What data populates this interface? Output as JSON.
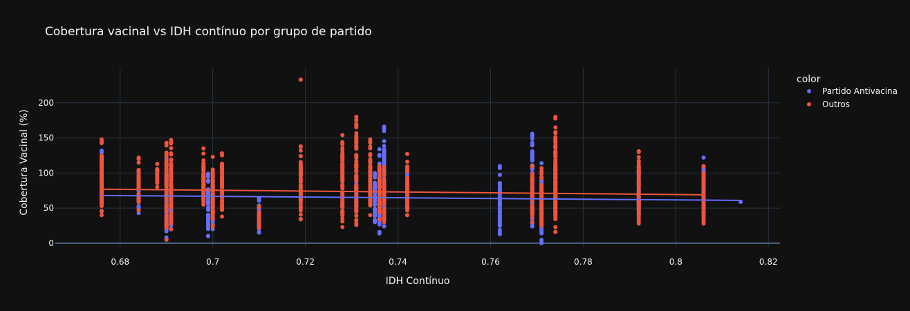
{
  "chart_data": {
    "type": "scatter",
    "title": "Cobertura vacinal vs IDH contínuo por grupo de partido",
    "xlabel": "IDH Contínuo",
    "ylabel": "Cobertura Vacinal (%)",
    "xlim": [
      0.666,
      0.8225
    ],
    "ylim": [
      -5,
      250
    ],
    "xticks": [
      0.68,
      0.7,
      0.72,
      0.74,
      0.76,
      0.78,
      0.8,
      0.82
    ],
    "xtick_labels": [
      "0.68",
      "0.7",
      "0.72",
      "0.74",
      "0.76",
      "0.78",
      "0.8",
      "0.82"
    ],
    "yticks": [
      0,
      50,
      100,
      150,
      200
    ],
    "ytick_labels": [
      "0",
      "50",
      "100",
      "150",
      "200"
    ],
    "grid": true,
    "legend": {
      "title": "color",
      "position": "right"
    },
    "background": "#111111",
    "grid_color": "#283442",
    "series": [
      {
        "name": "Partido Antivacina",
        "color": "#636efa",
        "columns": [
          {
            "x": 0.676,
            "min": 45,
            "max": 132
          },
          {
            "x": 0.684,
            "min": 43,
            "max": 95
          },
          {
            "x": 0.69,
            "min": 5,
            "max": 120
          },
          {
            "x": 0.691,
            "min": 20,
            "max": 100
          },
          {
            "x": 0.698,
            "min": 55,
            "max": 110
          },
          {
            "x": 0.699,
            "min": 10,
            "max": 99
          },
          {
            "x": 0.7,
            "min": 20,
            "max": 100
          },
          {
            "x": 0.71,
            "min": 15,
            "max": 64
          },
          {
            "x": 0.731,
            "min": 45,
            "max": 95
          },
          {
            "x": 0.735,
            "min": 30,
            "max": 100
          },
          {
            "x": 0.736,
            "min": 14,
            "max": 134
          },
          {
            "x": 0.737,
            "min": 24,
            "max": 166
          },
          {
            "x": 0.742,
            "min": 40,
            "max": 100
          },
          {
            "x": 0.762,
            "min": 13,
            "max": 110
          },
          {
            "x": 0.769,
            "min": 24,
            "max": 156
          },
          {
            "x": 0.771,
            "min": 0,
            "max": 114
          },
          {
            "x": 0.774,
            "min": 40,
            "max": 138
          },
          {
            "x": 0.792,
            "min": 38,
            "max": 101
          },
          {
            "x": 0.806,
            "min": 33,
            "max": 122
          },
          {
            "x": 0.814,
            "min": 59,
            "max": 59
          }
        ],
        "trend": {
          "x": [
            0.676,
            0.814
          ],
          "y": [
            68,
            61
          ]
        }
      },
      {
        "name": "Outros",
        "color": "#ef553b",
        "columns": [
          {
            "x": 0.676,
            "min": 40,
            "max": 148
          },
          {
            "x": 0.684,
            "min": 47,
            "max": 122
          },
          {
            "x": 0.688,
            "min": 80,
            "max": 113
          },
          {
            "x": 0.69,
            "min": 5,
            "max": 143
          },
          {
            "x": 0.691,
            "min": 20,
            "max": 147
          },
          {
            "x": 0.698,
            "min": 55,
            "max": 135
          },
          {
            "x": 0.7,
            "min": 23,
            "max": 123
          },
          {
            "x": 0.702,
            "min": 38,
            "max": 128
          },
          {
            "x": 0.71,
            "min": 22,
            "max": 52
          },
          {
            "x": 0.719,
            "min": 34,
            "max": 138
          },
          {
            "x": 0.728,
            "min": 23,
            "max": 154
          },
          {
            "x": 0.731,
            "min": 26,
            "max": 180
          },
          {
            "x": 0.734,
            "min": 40,
            "max": 148
          },
          {
            "x": 0.736,
            "min": 34,
            "max": 110
          },
          {
            "x": 0.737,
            "min": 30,
            "max": 108
          },
          {
            "x": 0.742,
            "min": 40,
            "max": 127
          },
          {
            "x": 0.769,
            "min": 30,
            "max": 110
          },
          {
            "x": 0.771,
            "min": 25,
            "max": 107
          },
          {
            "x": 0.774,
            "min": 16,
            "max": 180
          },
          {
            "x": 0.792,
            "min": 28,
            "max": 131
          },
          {
            "x": 0.806,
            "min": 28,
            "max": 110
          }
        ],
        "outliers": [
          {
            "x": 0.719,
            "y": 233
          },
          {
            "x": 0.774,
            "y": 165
          },
          {
            "x": 0.774,
            "y": 16
          },
          {
            "x": 0.792,
            "y": 131
          }
        ],
        "trend": {
          "x": [
            0.676,
            0.806
          ],
          "y": [
            77,
            69
          ]
        }
      }
    ]
  }
}
